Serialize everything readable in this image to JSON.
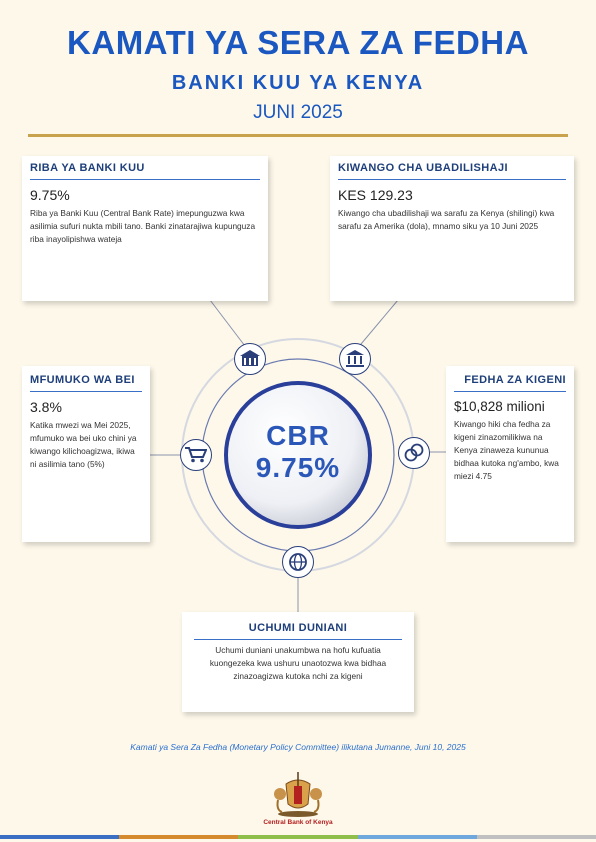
{
  "header": {
    "title": "KAMATI YA SERA ZA FEDHA",
    "subtitle": "BANKI KUU YA KENYA",
    "date": "JUNI 2025"
  },
  "center": {
    "label": "CBR",
    "value": "9.75%"
  },
  "cards": {
    "cbr": {
      "heading": "RIBA YA BANKI KUU",
      "value": "9.75%",
      "text": "Riba ya Banki Kuu (Central Bank Rate) imepunguzwa kwa asilimia sufuri nukta mbili tano. Banki zinatarajiwa kupunguza riba inayolipishwa wateja"
    },
    "exchange": {
      "heading": "KIWANGO CHA UBADILISHAJI",
      "value": "KES 129.23",
      "text": "Kiwango cha ubadilishaji wa sarafu za Kenya (shilingi) kwa sarafu za Amerika (dola), mnamo siku ya 10 Juni 2025"
    },
    "inflation": {
      "heading": "MFUMUKO WA BEI",
      "value": "3.8%",
      "text": "Katika mwezi wa Mei 2025, mfumuko wa bei uko chini ya kiwango kilichoagizwa, ikiwa ni asilimia tano (5%)"
    },
    "reserves": {
      "heading": "FEDHA ZA KIGENI",
      "value": "$10,828 milioni",
      "text": "Kiwango hiki cha fedha za kigeni zinazomilikiwa na Kenya zinaweza kununua bidhaa kutoka ng'ambo, kwa miezi 4.75"
    },
    "global": {
      "heading": "UCHUMI DUNIANI",
      "text": "Uchumi duniani unakumbwa na hofu kufuatia kuongezeka kwa ushuru unaotozwa kwa bidhaa zinazoagizwa kutoka nchi za kigeni"
    }
  },
  "footer": {
    "note": "Kamati ya Sera Za Fedha (Monetary Policy Committee) ilikutana Jumanne, Juni 10, 2025",
    "bank_name": "Central Bank of Kenya"
  },
  "colors": {
    "primary": "#1b57c0",
    "navy": "#1e3f7a",
    "gold": "#c8a24c",
    "stripe": [
      "#3b6fc4",
      "#d68a2e",
      "#8fbf4a",
      "#6fa8dc",
      "#c0c0c0"
    ]
  },
  "icons": [
    "bank-building-icon",
    "scales-icon",
    "shopping-cart-icon",
    "coins-icon",
    "globe-icon",
    "coat-of-arms-icon"
  ]
}
